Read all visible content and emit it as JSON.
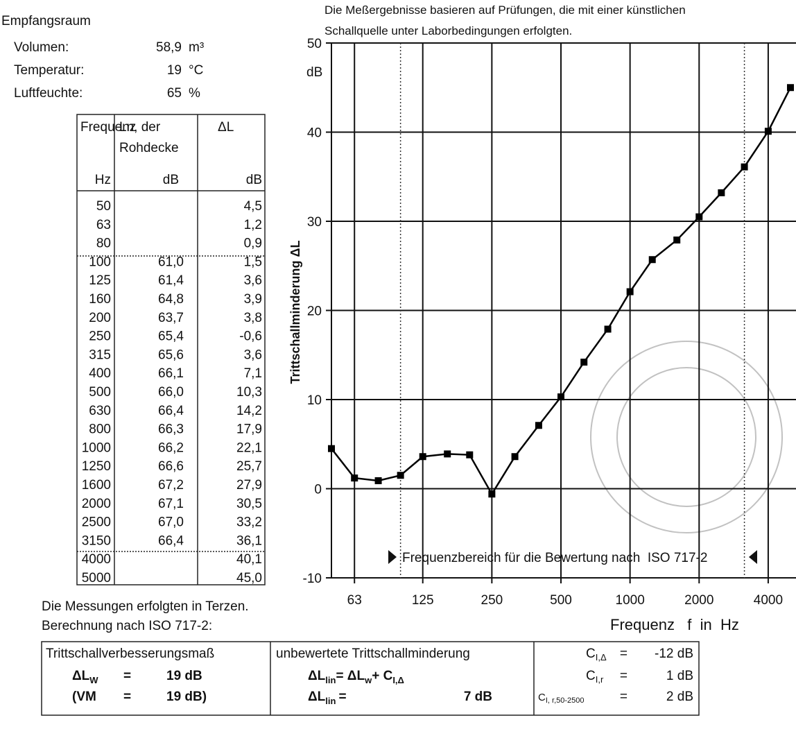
{
  "room": {
    "title": "Empfangsraum",
    "rows": [
      {
        "label": "Volumen:",
        "value": "58,9",
        "unit": "m³"
      },
      {
        "label": "Temperatur:",
        "value": "19",
        "unit": "°C"
      },
      {
        "label": "Luftfeuchte:",
        "value": "65",
        "unit": "%"
      }
    ]
  },
  "table": {
    "headers": [
      "Frequenz",
      "Ln, der",
      "Rohdecke",
      "ΔL"
    ],
    "units": [
      "Hz",
      "dB",
      "dB"
    ],
    "rows": [
      {
        "f": "50",
        "dl": "4,5"
      },
      {
        "f": "63",
        "dl": "1,2"
      },
      {
        "f": "80",
        "dl": "0,9"
      },
      {
        "f": "100",
        "ln": "61,0",
        "dl": "1,5"
      },
      {
        "f": "125",
        "ln": "61,4",
        "dl": "3,6"
      },
      {
        "f": "160",
        "ln": "64,8",
        "dl": "3,9"
      },
      {
        "f": "200",
        "ln": "63,7",
        "dl": "3,8"
      },
      {
        "f": "250",
        "ln": "65,4",
        "dl": "-0,6"
      },
      {
        "f": "315",
        "ln": "65,6",
        "dl": "3,6"
      },
      {
        "f": "400",
        "ln": "66,1",
        "dl": "7,1"
      },
      {
        "f": "500",
        "ln": "66,0",
        "dl": "10,3"
      },
      {
        "f": "630",
        "ln": "66,4",
        "dl": "14,2"
      },
      {
        "f": "800",
        "ln": "66,3",
        "dl": "17,9"
      },
      {
        "f": "1000",
        "ln": "66,2",
        "dl": "22,1"
      },
      {
        "f": "1250",
        "ln": "66,6",
        "dl": "25,7"
      },
      {
        "f": "1600",
        "ln": "67,2",
        "dl": "27,9"
      },
      {
        "f": "2000",
        "ln": "67,1",
        "dl": "30,5"
      },
      {
        "f": "2500",
        "ln": "67,0",
        "dl": "33,2"
      },
      {
        "f": "3150",
        "ln": "66,4",
        "dl": "36,1"
      },
      {
        "f": "4000",
        "dl": "40,1"
      },
      {
        "f": "5000",
        "dl": "45,0"
      }
    ]
  },
  "chart_data": {
    "type": "line",
    "title": [
      "Die Meßergebnisse basieren auf Prüfungen, die mit einer künstlichen",
      "Schallquelle unter Laborbedingungen erfolgten."
    ],
    "y_label": "Trittschallminderung ΔL",
    "y_unit": "dB",
    "x_label": "Frequenz   f  in  Hz",
    "x": [
      50,
      63,
      80,
      100,
      125,
      160,
      200,
      250,
      315,
      400,
      500,
      630,
      800,
      1000,
      1250,
      1600,
      2000,
      2500,
      3150,
      4000,
      5000
    ],
    "series": [
      {
        "name": "ΔL",
        "color": "#000000",
        "values": [
          4.5,
          1.2,
          0.9,
          1.5,
          3.6,
          3.9,
          3.8,
          -0.6,
          3.6,
          7.1,
          10.3,
          14.2,
          17.9,
          22.1,
          25.7,
          27.9,
          30.5,
          33.2,
          36.1,
          40.1,
          45.0
        ]
      }
    ],
    "xscale": "log",
    "xlim": [
      50,
      5000
    ],
    "xticks": [
      63,
      125,
      250,
      500,
      1000,
      2000,
      4000
    ],
    "ylim": [
      -10,
      50
    ],
    "yticks": [
      -10,
      0,
      10,
      20,
      30,
      40,
      50
    ],
    "grid": true,
    "evaluation_range": [
      100,
      3150
    ],
    "annotation": "Frequenzbereich für die Bewertung nach  ISO 717-2"
  },
  "notes": [
    "Die Messungen erfolgten in Terzen.",
    "Berechnung nach ISO 717-2:"
  ],
  "results": {
    "col1": {
      "heading": "Trittschallverbesserungsmaß",
      "row1": [
        "ΔL",
        "W",
        "=",
        "19 dB"
      ],
      "row2": [
        "(VM",
        "=",
        "19 dB)"
      ]
    },
    "col2": {
      "heading": "unbewertete Trittschallminderung",
      "row1": [
        "ΔL",
        "lin",
        "= ΔL",
        "w",
        "+ C",
        "I,Δ"
      ],
      "row2": [
        "ΔL",
        "lin",
        "=",
        "7 dB"
      ]
    },
    "col3": {
      "row1": [
        "C",
        "I,Δ",
        "=",
        "-12 dB"
      ],
      "row2": [
        "C",
        "I,r",
        "=",
        "1 dB"
      ],
      "row3": [
        "C",
        "I, r,50-2500",
        "=",
        "2 dB"
      ]
    }
  }
}
